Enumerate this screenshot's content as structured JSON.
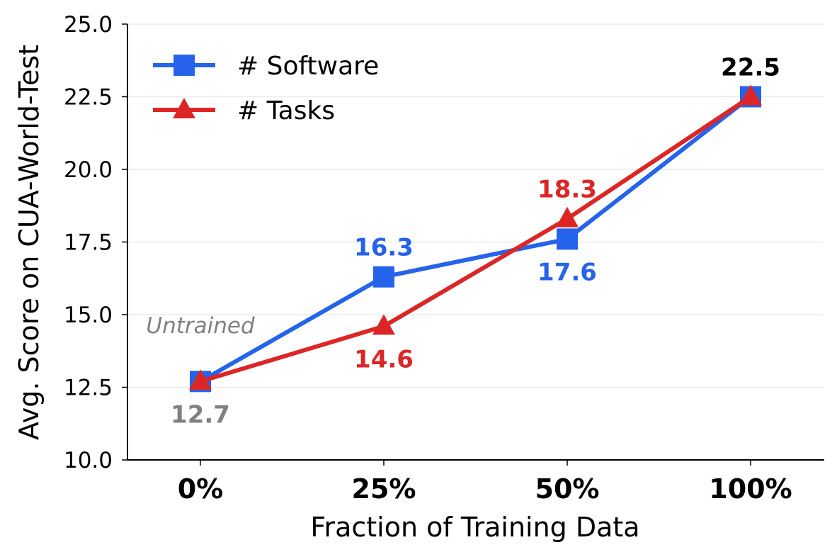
{
  "chart_data": {
    "type": "line",
    "categories": [
      "0%",
      "25%",
      "50%",
      "100%"
    ],
    "xlabel": "Fraction of Training Data",
    "ylabel": "Avg. Score on CUA-World-Test",
    "ylim": [
      10.0,
      25.0
    ],
    "yticks": [
      "10.0",
      "12.5",
      "15.0",
      "17.5",
      "20.0",
      "22.5",
      "25.0"
    ],
    "grid": "horizontal",
    "legend_position": "top-left",
    "series": [
      {
        "name": "# Software",
        "color": "#2563eb",
        "marker": "square",
        "values": [
          12.7,
          16.3,
          17.6,
          22.5
        ]
      },
      {
        "name": "# Tasks",
        "color": "#dc2626",
        "marker": "triangle",
        "values": [
          12.7,
          14.6,
          18.3,
          22.5
        ]
      }
    ],
    "data_labels": [
      {
        "text": "12.7",
        "category": "0%",
        "color": "#808080",
        "placement": "below"
      },
      {
        "text": "16.3",
        "category": "25%",
        "color": "#2563eb",
        "placement": "above"
      },
      {
        "text": "14.6",
        "category": "25%",
        "color": "#dc2626",
        "placement": "below"
      },
      {
        "text": "18.3",
        "category": "50%",
        "color": "#dc2626",
        "placement": "above"
      },
      {
        "text": "17.6",
        "category": "50%",
        "color": "#2563eb",
        "placement": "below"
      },
      {
        "text": "22.5",
        "category": "100%",
        "color": "#000000",
        "placement": "above"
      }
    ],
    "annotation": {
      "text": "Untrained",
      "category": "0%"
    }
  }
}
